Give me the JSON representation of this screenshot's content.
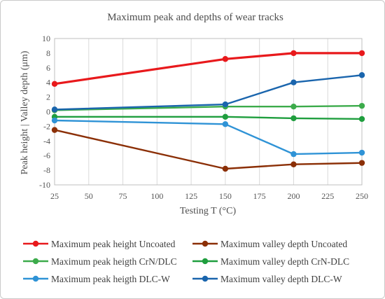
{
  "chart_data": {
    "type": "line",
    "title": "Maximum peak and depths of wear tracks",
    "xlabel": "Testing T (°C)",
    "ylabel": "Peak height | Valley  depth (μm)",
    "x": [
      25,
      150,
      200,
      250
    ],
    "xlim": [
      25,
      250
    ],
    "ylim": [
      -10,
      10
    ],
    "xticks": [
      "25",
      "50",
      "75",
      "100",
      "125",
      "150",
      "175",
      "200",
      "225",
      "250"
    ],
    "yticks": [
      "10",
      "8",
      "6",
      "4",
      "2",
      "0",
      "-2",
      "-4",
      "-6",
      "-8",
      "-10"
    ],
    "grid": "vertical",
    "legend_position": "bottom",
    "series": [
      {
        "name": "Maximum peak height Uncoated",
        "color": "#e8191c",
        "values": [
          3.8,
          7.2,
          8.0,
          8.0
        ]
      },
      {
        "name": "Maximum valley depth Uncoated",
        "color": "#8b2f06",
        "values": [
          -2.5,
          -7.8,
          -7.2,
          -7.0
        ]
      },
      {
        "name": "Maximum peak heigth CrN/DLC",
        "color": "#3cab4b",
        "values": [
          0.2,
          0.7,
          0.7,
          0.8
        ]
      },
      {
        "name": "Maximum valley depth CrN-DLC",
        "color": "#1f9e3e",
        "values": [
          -0.7,
          -0.7,
          -0.9,
          -1.0
        ]
      },
      {
        "name": "Maximum peak heigth DLC-W",
        "color": "#2f93d6",
        "values": [
          -1.2,
          -1.7,
          -5.8,
          -5.6
        ]
      },
      {
        "name": "Maximum valley depth DLC-W",
        "color": "#1a65ad",
        "values": [
          0.3,
          1.0,
          4.0,
          5.0
        ]
      }
    ]
  }
}
